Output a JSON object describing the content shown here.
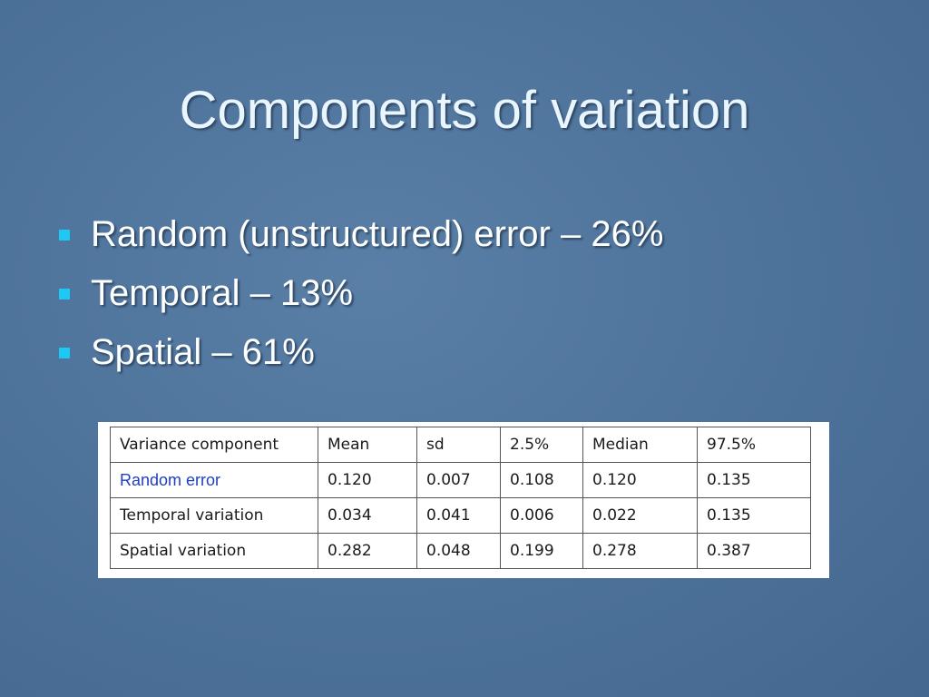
{
  "title": "Components of variation",
  "bullets": [
    "Random (unstructured) error – 26%",
    "Temporal – 13%",
    "Spatial – 61%"
  ],
  "table": {
    "header": [
      "Variance component",
      "Mean",
      "sd",
      "2.5%",
      "Median",
      "97.5%"
    ],
    "rows": [
      [
        "Random error",
        "0.120",
        "0.007",
        "0.108",
        "0.120",
        "0.135"
      ],
      [
        "Temporal variation",
        "0.034",
        "0.041",
        "0.006",
        "0.022",
        "0.135"
      ],
      [
        "Spatial variation",
        "0.282",
        "0.048",
        "0.199",
        "0.278",
        "0.387"
      ]
    ]
  }
}
